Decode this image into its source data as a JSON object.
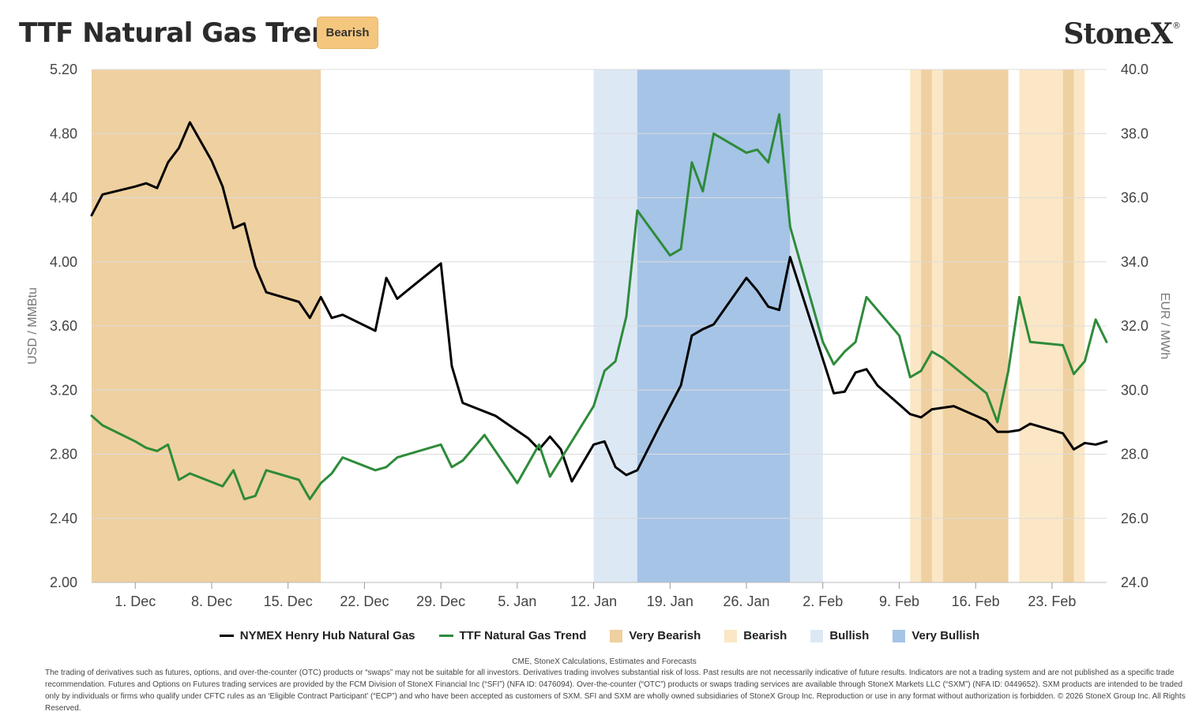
{
  "header": {
    "title": "TTF Natural Gas Trend",
    "badge": "Bearish",
    "logo": "StoneX",
    "logo_mark": "®"
  },
  "chart_data": {
    "type": "line",
    "ylabel": "USD / MMBtu",
    "y2label": "EUR / MWh",
    "ylim": [
      2.0,
      5.2
    ],
    "y2lim": [
      24.0,
      40.0
    ],
    "yticks": [
      "2.00",
      "2.40",
      "2.80",
      "3.20",
      "3.60",
      "4.00",
      "4.40",
      "4.80",
      "5.20"
    ],
    "y2ticks": [
      "24.0",
      "26.0",
      "28.0",
      "30.0",
      "32.0",
      "34.0",
      "36.0",
      "38.0",
      "40.0"
    ],
    "xrange": [
      "2025-11-27",
      "2026-02-27"
    ],
    "xticks": [
      {
        "date": "2025-12-01",
        "label": "1. Dec"
      },
      {
        "date": "2025-12-08",
        "label": "8. Dec"
      },
      {
        "date": "2025-12-15",
        "label": "15. Dec"
      },
      {
        "date": "2025-12-22",
        "label": "22. Dec"
      },
      {
        "date": "2025-12-29",
        "label": "29. Dec"
      },
      {
        "date": "2026-01-05",
        "label": "5. Jan"
      },
      {
        "date": "2026-01-12",
        "label": "12. Jan"
      },
      {
        "date": "2026-01-19",
        "label": "19. Jan"
      },
      {
        "date": "2026-01-26",
        "label": "26. Jan"
      },
      {
        "date": "2026-02-02",
        "label": "2. Feb"
      },
      {
        "date": "2026-02-09",
        "label": "9. Feb"
      },
      {
        "date": "2026-02-16",
        "label": "16. Feb"
      },
      {
        "date": "2026-02-23",
        "label": "23. Feb"
      }
    ],
    "grid": true,
    "legend_position": "bottom",
    "colors": {
      "henry_hub": "#000000",
      "ttf": "#2e8b3a",
      "very_bearish": "#efd0a0",
      "bearish": "#fbe7c5",
      "bullish": "#dde8f5",
      "very_bullish": "#a6c4e6"
    },
    "series": [
      {
        "name": "NYMEX Henry Hub Natural Gas",
        "axis": "left",
        "color": "#000000",
        "points": [
          [
            "2025-11-27",
            4.29
          ],
          [
            "2025-11-28",
            4.42
          ],
          [
            "2025-12-01",
            4.47
          ],
          [
            "2025-12-02",
            4.49
          ],
          [
            "2025-12-03",
            4.46
          ],
          [
            "2025-12-04",
            4.62
          ],
          [
            "2025-12-05",
            4.71
          ],
          [
            "2025-12-06",
            4.87
          ],
          [
            "2025-12-08",
            4.63
          ],
          [
            "2025-12-09",
            4.47
          ],
          [
            "2025-12-10",
            4.21
          ],
          [
            "2025-12-11",
            4.24
          ],
          [
            "2025-12-12",
            3.97
          ],
          [
            "2025-12-13",
            3.81
          ],
          [
            "2025-12-16",
            3.75
          ],
          [
            "2025-12-17",
            3.65
          ],
          [
            "2025-12-18",
            3.78
          ],
          [
            "2025-12-19",
            3.65
          ],
          [
            "2025-12-20",
            3.67
          ],
          [
            "2025-12-23",
            3.57
          ],
          [
            "2025-12-24",
            3.9
          ],
          [
            "2025-12-25",
            3.77
          ],
          [
            "2025-12-27",
            3.88
          ],
          [
            "2025-12-29",
            3.99
          ],
          [
            "2025-12-30",
            3.35
          ],
          [
            "2025-12-31",
            3.12
          ],
          [
            "2026-01-03",
            3.04
          ],
          [
            "2026-01-06",
            2.9
          ],
          [
            "2026-01-07",
            2.83
          ],
          [
            "2026-01-08",
            2.91
          ],
          [
            "2026-01-09",
            2.83
          ],
          [
            "2026-01-10",
            2.63
          ],
          [
            "2026-01-12",
            2.86
          ],
          [
            "2026-01-13",
            2.88
          ],
          [
            "2026-01-14",
            2.72
          ],
          [
            "2026-01-15",
            2.67
          ],
          [
            "2026-01-16",
            2.7
          ],
          [
            "2026-01-18",
            2.97
          ],
          [
            "2026-01-20",
            3.23
          ],
          [
            "2026-01-21",
            3.54
          ],
          [
            "2026-01-22",
            3.58
          ],
          [
            "2026-01-23",
            3.61
          ],
          [
            "2026-01-26",
            3.9
          ],
          [
            "2026-01-27",
            3.82
          ],
          [
            "2026-01-28",
            3.72
          ],
          [
            "2026-01-29",
            3.7
          ],
          [
            "2026-01-30",
            4.03
          ],
          [
            "2026-02-03",
            3.18
          ],
          [
            "2026-02-04",
            3.19
          ],
          [
            "2026-02-05",
            3.31
          ],
          [
            "2026-02-06",
            3.33
          ],
          [
            "2026-02-07",
            3.23
          ],
          [
            "2026-02-09",
            3.11
          ],
          [
            "2026-02-10",
            3.05
          ],
          [
            "2026-02-11",
            3.03
          ],
          [
            "2026-02-12",
            3.08
          ],
          [
            "2026-02-13",
            3.09
          ],
          [
            "2026-02-14",
            3.1
          ],
          [
            "2026-02-17",
            3.01
          ],
          [
            "2026-02-18",
            2.94
          ],
          [
            "2026-02-19",
            2.94
          ],
          [
            "2026-02-20",
            2.95
          ],
          [
            "2026-02-21",
            2.99
          ],
          [
            "2026-02-24",
            2.93
          ],
          [
            "2026-02-25",
            2.83
          ],
          [
            "2026-02-26",
            2.87
          ],
          [
            "2026-02-27",
            2.86
          ],
          [
            "2026-02-28",
            2.88
          ]
        ]
      },
      {
        "name": "TTF Natural Gas Trend",
        "axis": "right",
        "color": "#2e8b3a",
        "points": [
          [
            "2025-11-27",
            29.2
          ],
          [
            "2025-11-28",
            28.9
          ],
          [
            "2025-12-01",
            28.4
          ],
          [
            "2025-12-02",
            28.2
          ],
          [
            "2025-12-03",
            28.1
          ],
          [
            "2025-12-04",
            28.3
          ],
          [
            "2025-12-05",
            27.2
          ],
          [
            "2025-12-06",
            27.4
          ],
          [
            "2025-12-09",
            27.0
          ],
          [
            "2025-12-10",
            27.5
          ],
          [
            "2025-12-11",
            26.6
          ],
          [
            "2025-12-12",
            26.7
          ],
          [
            "2025-12-13",
            27.5
          ],
          [
            "2025-12-16",
            27.2
          ],
          [
            "2025-12-17",
            26.6
          ],
          [
            "2025-12-18",
            27.1
          ],
          [
            "2025-12-19",
            27.4
          ],
          [
            "2025-12-20",
            27.9
          ],
          [
            "2025-12-23",
            27.5
          ],
          [
            "2025-12-24",
            27.6
          ],
          [
            "2025-12-25",
            27.9
          ],
          [
            "2025-12-29",
            28.3
          ],
          [
            "2025-12-30",
            27.6
          ],
          [
            "2025-12-31",
            27.8
          ],
          [
            "2026-01-02",
            28.6
          ],
          [
            "2026-01-05",
            27.1
          ],
          [
            "2026-01-07",
            28.3
          ],
          [
            "2026-01-08",
            27.3
          ],
          [
            "2026-01-12",
            29.5
          ],
          [
            "2026-01-13",
            30.6
          ],
          [
            "2026-01-14",
            30.9
          ],
          [
            "2026-01-15",
            32.3
          ],
          [
            "2026-01-16",
            35.6
          ],
          [
            "2026-01-19",
            34.2
          ],
          [
            "2026-01-20",
            34.4
          ],
          [
            "2026-01-21",
            37.1
          ],
          [
            "2026-01-22",
            36.2
          ],
          [
            "2026-01-23",
            38.0
          ],
          [
            "2026-01-26",
            37.4
          ],
          [
            "2026-01-27",
            37.5
          ],
          [
            "2026-01-28",
            37.1
          ],
          [
            "2026-01-29",
            38.6
          ],
          [
            "2026-01-30",
            35.1
          ],
          [
            "2026-02-02",
            31.5
          ],
          [
            "2026-02-03",
            30.8
          ],
          [
            "2026-02-04",
            31.2
          ],
          [
            "2026-02-05",
            31.5
          ],
          [
            "2026-02-06",
            32.9
          ],
          [
            "2026-02-09",
            31.7
          ],
          [
            "2026-02-10",
            30.4
          ],
          [
            "2026-02-11",
            30.6
          ],
          [
            "2026-02-12",
            31.2
          ],
          [
            "2026-02-13",
            31.0
          ],
          [
            "2026-02-17",
            29.9
          ],
          [
            "2026-02-18",
            29.0
          ],
          [
            "2026-02-19",
            30.6
          ],
          [
            "2026-02-20",
            32.9
          ],
          [
            "2026-02-21",
            31.5
          ],
          [
            "2026-02-24",
            31.4
          ],
          [
            "2026-02-25",
            30.5
          ],
          [
            "2026-02-26",
            30.9
          ],
          [
            "2026-02-27",
            32.2
          ],
          [
            "2026-02-28",
            31.5
          ]
        ]
      }
    ],
    "bands": [
      {
        "category": "Very Bearish",
        "from": "2025-11-27",
        "to": "2025-12-18"
      },
      {
        "category": "Bullish",
        "from": "2026-01-12",
        "to": "2026-01-16"
      },
      {
        "category": "Very Bullish",
        "from": "2026-01-16",
        "to": "2026-01-30"
      },
      {
        "category": "Bullish",
        "from": "2026-01-30",
        "to": "2026-02-02"
      },
      {
        "category": "Bearish",
        "from": "2026-02-10",
        "to": "2026-02-11"
      },
      {
        "category": "Very Bearish",
        "from": "2026-02-11",
        "to": "2026-02-12"
      },
      {
        "category": "Bearish",
        "from": "2026-02-12",
        "to": "2026-02-13"
      },
      {
        "category": "Very Bearish",
        "from": "2026-02-13",
        "to": "2026-02-19"
      },
      {
        "category": "Bearish",
        "from": "2026-02-20",
        "to": "2026-02-24"
      },
      {
        "category": "Very Bearish",
        "from": "2026-02-24",
        "to": "2026-02-25"
      },
      {
        "category": "Bearish",
        "from": "2026-02-25",
        "to": "2026-02-26"
      }
    ]
  },
  "legend": [
    {
      "label": "NYMEX Henry Hub Natural Gas",
      "kind": "line",
      "color": "#000000"
    },
    {
      "label": "TTF Natural Gas Trend",
      "kind": "line",
      "color": "#2e8b3a"
    },
    {
      "label": "Very Bearish",
      "kind": "swatch",
      "color": "#efd0a0"
    },
    {
      "label": "Bearish",
      "kind": "swatch",
      "color": "#fbe7c5"
    },
    {
      "label": "Bullish",
      "kind": "swatch",
      "color": "#dde8f5"
    },
    {
      "label": "Very Bullish",
      "kind": "swatch",
      "color": "#a6c4e6"
    }
  ],
  "footer": {
    "source": "CME, StoneX Calculations, Estimates and Forecasts",
    "disclaimer": "The trading of derivatives such as futures, options, and over-the-counter (OTC) products or “swaps” may not be suitable for all investors. Derivatives trading involves substantial risk of loss. Past results are not necessarily indicative of future results. Indicators are not a trading system and are not published as a specific trade recommendation. Futures and Options on Futures trading services are provided by the FCM Division of StoneX Financial Inc (“SFI”) (NFA ID: 0476094). Over-the-counter (“OTC”) products or swaps trading services are available through StoneX Markets LLC (“SXM”) (NFA ID: 0449652). SXM products are intended to be traded only by individuals or firms who qualify under CFTC rules as an ‘Eligible Contract Participant’ (“ECP”) and who have been accepted as customers of SXM. SFI and SXM are wholly owned subsidiaries of StoneX Group Inc. Reproduction or use in any format without authorization is forbidden. © 2026 StoneX Group Inc. All Rights Reserved."
  }
}
